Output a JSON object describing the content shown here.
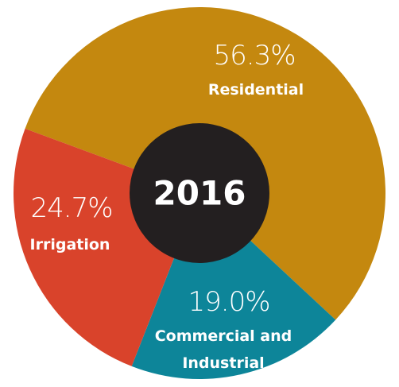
{
  "chart_data": {
    "type": "donut",
    "center_label": "2016",
    "categories": [
      "Residential",
      "Commercial and Industrial",
      "Irrigation"
    ],
    "values": [
      56.3,
      19.0,
      24.7
    ],
    "value_labels": [
      "56.3%",
      "19.0%",
      "24.7%"
    ],
    "colors": [
      "#c4880f",
      "#0d8599",
      "#d9432b"
    ],
    "center_color": "#231f20"
  }
}
